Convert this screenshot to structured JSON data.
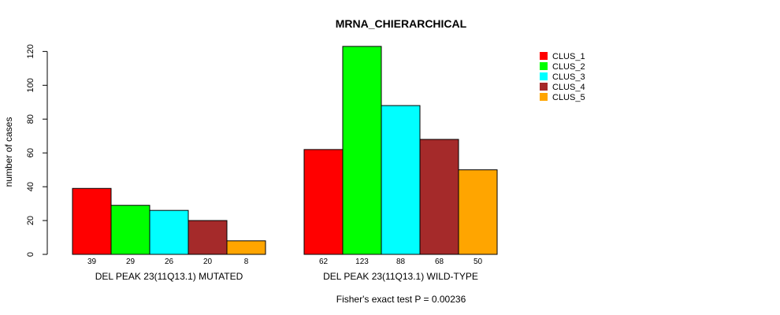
{
  "chart_data": {
    "type": "bar",
    "title": "MRNA_CHIERARCHICAL",
    "ylabel": "number of cases",
    "xlabel": "",
    "footnote": "Fisher's exact test P = 0.00236",
    "ylim": [
      0,
      125
    ],
    "yticks": [
      0,
      20,
      40,
      60,
      80,
      100,
      120
    ],
    "legend_position": "top-right",
    "groups": [
      "DEL PEAK 23(11Q13.1) MUTATED",
      "DEL PEAK 23(11Q13.1) WILD-TYPE"
    ],
    "series": [
      {
        "name": "CLUS_1",
        "color": "#FF0000",
        "values": [
          39,
          62
        ]
      },
      {
        "name": "CLUS_2",
        "color": "#00FF00",
        "values": [
          29,
          123
        ]
      },
      {
        "name": "CLUS_3",
        "color": "#00FFFF",
        "values": [
          26,
          88
        ]
      },
      {
        "name": "CLUS_4",
        "color": "#A52A2A",
        "values": [
          20,
          68
        ]
      },
      {
        "name": "CLUS_5",
        "color": "#FFA500",
        "values": [
          8,
          50
        ]
      }
    ]
  }
}
